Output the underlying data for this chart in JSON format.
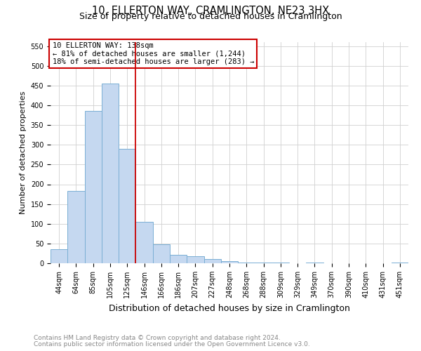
{
  "title": "10, ELLERTON WAY, CRAMLINGTON, NE23 3HX",
  "subtitle": "Size of property relative to detached houses in Cramlington",
  "xlabel": "Distribution of detached houses by size in Cramlington",
  "ylabel": "Number of detached properties",
  "footer_lines": [
    "Contains HM Land Registry data © Crown copyright and database right 2024.",
    "Contains public sector information licensed under the Open Government Licence v3.0."
  ],
  "bin_labels": [
    "44sqm",
    "64sqm",
    "85sqm",
    "105sqm",
    "125sqm",
    "146sqm",
    "166sqm",
    "186sqm",
    "207sqm",
    "227sqm",
    "248sqm",
    "268sqm",
    "288sqm",
    "309sqm",
    "329sqm",
    "349sqm",
    "370sqm",
    "390sqm",
    "410sqm",
    "431sqm",
    "451sqm"
  ],
  "bar_heights": [
    35,
    183,
    385,
    455,
    290,
    105,
    48,
    22,
    18,
    10,
    5,
    2,
    1,
    1,
    0,
    1,
    0,
    0,
    0,
    0,
    1
  ],
  "bar_color": "#c5d8f0",
  "bar_edgecolor": "#7aafd4",
  "vline_x": 4.5,
  "vline_color": "#cc0000",
  "annotation_title": "10 ELLERTON WAY: 138sqm",
  "annotation_line1": "← 81% of detached houses are smaller (1,244)",
  "annotation_line2": "18% of semi-detached houses are larger (283) →",
  "annotation_box_color": "#cc0000",
  "ylim": [
    0,
    560
  ],
  "yticks": [
    0,
    50,
    100,
    150,
    200,
    250,
    300,
    350,
    400,
    450,
    500,
    550
  ],
  "title_fontsize": 10.5,
  "subtitle_fontsize": 9,
  "xlabel_fontsize": 9,
  "ylabel_fontsize": 8,
  "tick_fontsize": 7,
  "annotation_fontsize": 7.5,
  "footer_fontsize": 6.5
}
